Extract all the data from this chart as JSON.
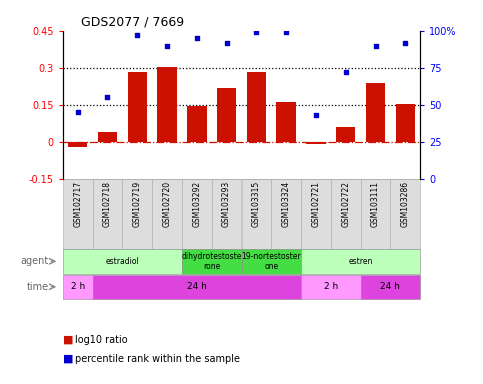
{
  "title": "GDS2077 / 7669",
  "samples": [
    "GSM102717",
    "GSM102718",
    "GSM102719",
    "GSM102720",
    "GSM103292",
    "GSM103293",
    "GSM103315",
    "GSM103324",
    "GSM102721",
    "GSM102722",
    "GSM103111",
    "GSM103286"
  ],
  "log10_ratio": [
    -0.02,
    0.04,
    0.285,
    0.305,
    0.145,
    0.22,
    0.285,
    0.16,
    -0.01,
    0.06,
    0.24,
    0.155
  ],
  "percentile_rank": [
    45,
    55,
    97,
    90,
    95,
    92,
    99,
    99,
    43,
    72,
    90,
    92
  ],
  "bar_color": "#cc1100",
  "dot_color": "#0000cc",
  "ylim_left": [
    -0.15,
    0.45
  ],
  "ylim_right": [
    0,
    100
  ],
  "hline_y": [
    0.15,
    0.3
  ],
  "zero_line_y": 0,
  "yticks_left": [
    -0.15,
    0,
    0.15,
    0.3,
    0.45
  ],
  "ytick_labels_left": [
    "-0.15",
    "0",
    "0.15",
    "0.3",
    "0.45"
  ],
  "yticks_right": [
    0,
    25,
    50,
    75,
    100
  ],
  "ytick_labels_right": [
    "0",
    "25",
    "50",
    "75",
    "100%"
  ],
  "agent_groups": [
    {
      "label": "estradiol",
      "start": 0,
      "end": 4,
      "color": "#bbffbb"
    },
    {
      "label": "dihydrotestoste\nrone",
      "start": 4,
      "end": 6,
      "color": "#44dd44"
    },
    {
      "label": "19-nortestoster\none",
      "start": 6,
      "end": 8,
      "color": "#44dd44"
    },
    {
      "label": "estren",
      "start": 8,
      "end": 12,
      "color": "#bbffbb"
    }
  ],
  "time_groups": [
    {
      "label": "2 h",
      "start": 0,
      "end": 1,
      "color": "#ff99ff"
    },
    {
      "label": "24 h",
      "start": 1,
      "end": 8,
      "color": "#dd44dd"
    },
    {
      "label": "2 h",
      "start": 8,
      "end": 10,
      "color": "#ff99ff"
    },
    {
      "label": "24 h",
      "start": 10,
      "end": 12,
      "color": "#dd44dd"
    }
  ],
  "legend_items": [
    {
      "label": "log10 ratio",
      "color": "#cc1100"
    },
    {
      "label": "percentile rank within the sample",
      "color": "#0000cc"
    }
  ],
  "bar_color_label": "#cc1100",
  "dot_color_label": "#0000cc",
  "left_axis_color": "red",
  "right_axis_color": "blue",
  "sample_box_color": "#dddddd",
  "sample_box_edge": "#aaaaaa"
}
